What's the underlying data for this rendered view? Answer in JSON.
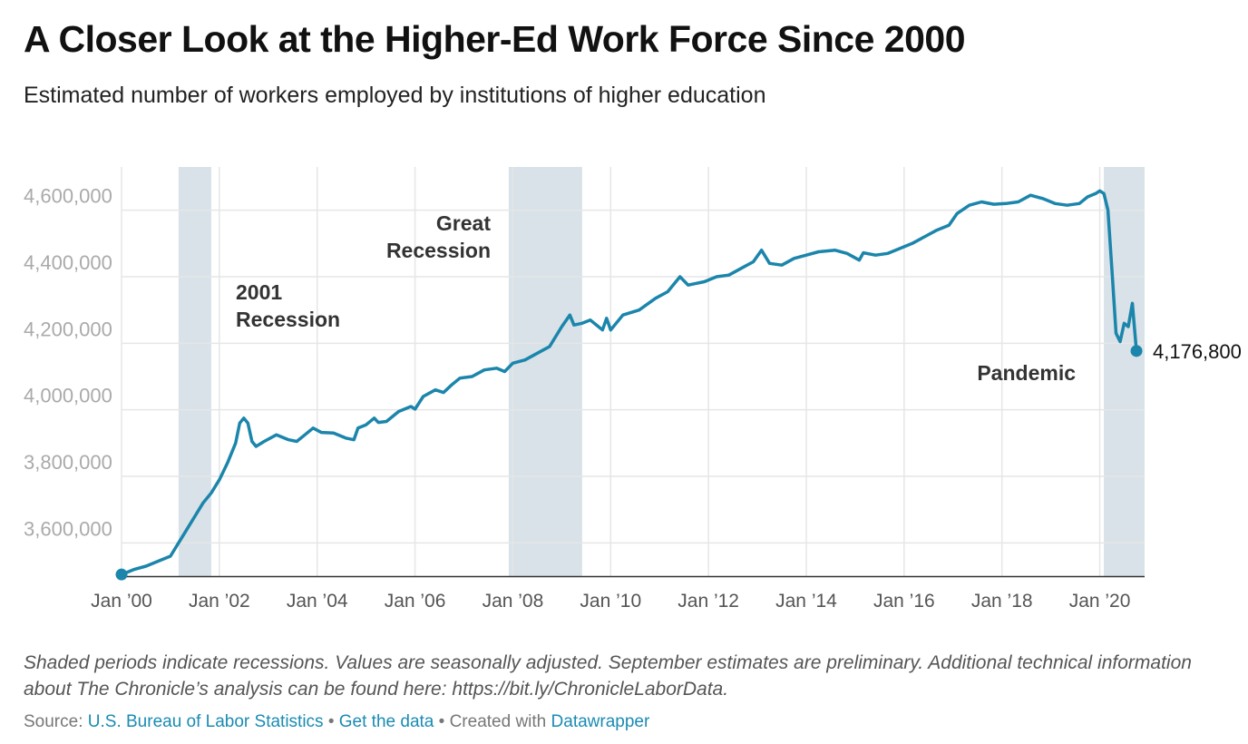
{
  "title": "A Closer Look at the Higher-Ed Work Force Since 2000",
  "subtitle": "Estimated number of workers employed by institutions of higher education",
  "colors": {
    "line": "#1b85ab",
    "shade": "#d8e2e8",
    "grid": "#e6e6e6"
  },
  "chart_data": {
    "type": "line",
    "title": "A Closer Look at the Higher-Ed Work Force Since 2000",
    "xlabel": "",
    "ylabel": "",
    "ylim": [
      3500000,
      4730000
    ],
    "xlim": [
      "2000-01",
      "2020-12"
    ],
    "grid": "on",
    "y_ticks": [
      {
        "value": 3600000,
        "label": "3,600,000"
      },
      {
        "value": 3800000,
        "label": "3,800,000"
      },
      {
        "value": 4000000,
        "label": "4,000,000"
      },
      {
        "value": 4200000,
        "label": "4,200,000"
      },
      {
        "value": 4400000,
        "label": "4,400,000"
      },
      {
        "value": 4600000,
        "label": "4,600,000"
      }
    ],
    "x_ticks": [
      {
        "date": "2000-01",
        "label": "Jan ’00"
      },
      {
        "date": "2002-01",
        "label": "Jan ’02"
      },
      {
        "date": "2004-01",
        "label": "Jan ’04"
      },
      {
        "date": "2006-01",
        "label": "Jan ’06"
      },
      {
        "date": "2008-01",
        "label": "Jan ’08"
      },
      {
        "date": "2010-01",
        "label": "Jan ’10"
      },
      {
        "date": "2012-01",
        "label": "Jan ’12"
      },
      {
        "date": "2014-01",
        "label": "Jan ’14"
      },
      {
        "date": "2016-01",
        "label": "Jan ’16"
      },
      {
        "date": "2018-01",
        "label": "Jan ’18"
      },
      {
        "date": "2020-01",
        "label": "Jan ’20"
      }
    ],
    "shaded_periods": [
      {
        "start": "2001-03",
        "end": "2001-11",
        "label": "2001 Recession"
      },
      {
        "start": "2007-12",
        "end": "2009-06",
        "label": "Great Recession"
      },
      {
        "start": "2020-02",
        "end": "2020-12",
        "label": "Pandemic"
      }
    ],
    "annotations": [
      {
        "lines": [
          "2001",
          "Recession"
        ]
      },
      {
        "lines": [
          "Great",
          "Recession"
        ]
      },
      {
        "lines": [
          "Pandemic"
        ]
      }
    ],
    "series": [
      {
        "points": [
          [
            "2000-01",
            3505000
          ],
          [
            "2000-04",
            3520000
          ],
          [
            "2000-07",
            3530000
          ],
          [
            "2000-10",
            3545000
          ],
          [
            "2001-01",
            3560000
          ],
          [
            "2001-03",
            3600000
          ],
          [
            "2001-05",
            3640000
          ],
          [
            "2001-07",
            3680000
          ],
          [
            "2001-09",
            3720000
          ],
          [
            "2001-11",
            3750000
          ],
          [
            "2002-01",
            3790000
          ],
          [
            "2002-03",
            3840000
          ],
          [
            "2002-05",
            3900000
          ],
          [
            "2002-06",
            3960000
          ],
          [
            "2002-07",
            3975000
          ],
          [
            "2002-08",
            3960000
          ],
          [
            "2002-09",
            3905000
          ],
          [
            "2002-10",
            3890000
          ],
          [
            "2002-12",
            3905000
          ],
          [
            "2003-03",
            3925000
          ],
          [
            "2003-06",
            3910000
          ],
          [
            "2003-08",
            3905000
          ],
          [
            "2003-10",
            3925000
          ],
          [
            "2003-12",
            3945000
          ],
          [
            "2004-02",
            3932000
          ],
          [
            "2004-05",
            3930000
          ],
          [
            "2004-08",
            3915000
          ],
          [
            "2004-10",
            3910000
          ],
          [
            "2004-11",
            3945000
          ],
          [
            "2005-01",
            3955000
          ],
          [
            "2005-03",
            3975000
          ],
          [
            "2005-04",
            3962000
          ],
          [
            "2005-06",
            3965000
          ],
          [
            "2005-09",
            3995000
          ],
          [
            "2005-12",
            4010000
          ],
          [
            "2006-01",
            4002000
          ],
          [
            "2006-03",
            4040000
          ],
          [
            "2006-06",
            4060000
          ],
          [
            "2006-08",
            4052000
          ],
          [
            "2006-10",
            4075000
          ],
          [
            "2006-12",
            4095000
          ],
          [
            "2007-03",
            4100000
          ],
          [
            "2007-06",
            4120000
          ],
          [
            "2007-09",
            4125000
          ],
          [
            "2007-11",
            4115000
          ],
          [
            "2008-01",
            4140000
          ],
          [
            "2008-04",
            4150000
          ],
          [
            "2008-07",
            4170000
          ],
          [
            "2008-10",
            4190000
          ],
          [
            "2009-01",
            4250000
          ],
          [
            "2009-03",
            4285000
          ],
          [
            "2009-04",
            4255000
          ],
          [
            "2009-06",
            4260000
          ],
          [
            "2009-08",
            4270000
          ],
          [
            "2009-10",
            4250000
          ],
          [
            "2009-11",
            4240000
          ],
          [
            "2009-12",
            4275000
          ],
          [
            "2010-01",
            4240000
          ],
          [
            "2010-04",
            4285000
          ],
          [
            "2010-08",
            4300000
          ],
          [
            "2010-12",
            4335000
          ],
          [
            "2011-03",
            4355000
          ],
          [
            "2011-06",
            4400000
          ],
          [
            "2011-08",
            4375000
          ],
          [
            "2011-12",
            4385000
          ],
          [
            "2012-03",
            4400000
          ],
          [
            "2012-06",
            4405000
          ],
          [
            "2012-09",
            4425000
          ],
          [
            "2012-12",
            4445000
          ],
          [
            "2013-02",
            4480000
          ],
          [
            "2013-04",
            4440000
          ],
          [
            "2013-07",
            4435000
          ],
          [
            "2013-10",
            4455000
          ],
          [
            "2014-01",
            4465000
          ],
          [
            "2014-04",
            4475000
          ],
          [
            "2014-08",
            4480000
          ],
          [
            "2014-11",
            4470000
          ],
          [
            "2015-02",
            4450000
          ],
          [
            "2015-03",
            4472000
          ],
          [
            "2015-06",
            4465000
          ],
          [
            "2015-09",
            4470000
          ],
          [
            "2015-12",
            4485000
          ],
          [
            "2016-03",
            4500000
          ],
          [
            "2016-06",
            4520000
          ],
          [
            "2016-09",
            4540000
          ],
          [
            "2016-12",
            4555000
          ],
          [
            "2017-02",
            4590000
          ],
          [
            "2017-05",
            4615000
          ],
          [
            "2017-08",
            4625000
          ],
          [
            "2017-11",
            4618000
          ],
          [
            "2018-02",
            4620000
          ],
          [
            "2018-05",
            4625000
          ],
          [
            "2018-08",
            4645000
          ],
          [
            "2018-11",
            4635000
          ],
          [
            "2019-02",
            4620000
          ],
          [
            "2019-05",
            4615000
          ],
          [
            "2019-08",
            4620000
          ],
          [
            "2019-10",
            4640000
          ],
          [
            "2019-12",
            4650000
          ],
          [
            "2020-01",
            4658000
          ],
          [
            "2020-02",
            4650000
          ],
          [
            "2020-03",
            4600000
          ],
          [
            "2020-04",
            4420000
          ],
          [
            "2020-05",
            4230000
          ],
          [
            "2020-06",
            4205000
          ],
          [
            "2020-07",
            4260000
          ],
          [
            "2020-08",
            4250000
          ],
          [
            "2020-09",
            4320000
          ],
          [
            "2020-10",
            4176800
          ]
        ]
      }
    ],
    "end_label": "4,176,800"
  },
  "note": "Shaded periods indicate recessions. Values are seasonally adjusted. September estimates are preliminary. Additional technical information about The Chronicle’s analysis can be found here: https://bit.ly/ChronicleLaborData.",
  "footer": {
    "source_label": "Source: ",
    "source_link": "U.S. Bureau of Labor Statistics",
    "sep1": " • ",
    "data_link": "Get the data",
    "sep2": " • ",
    "created_label": "Created with ",
    "created_link": "Datawrapper"
  }
}
